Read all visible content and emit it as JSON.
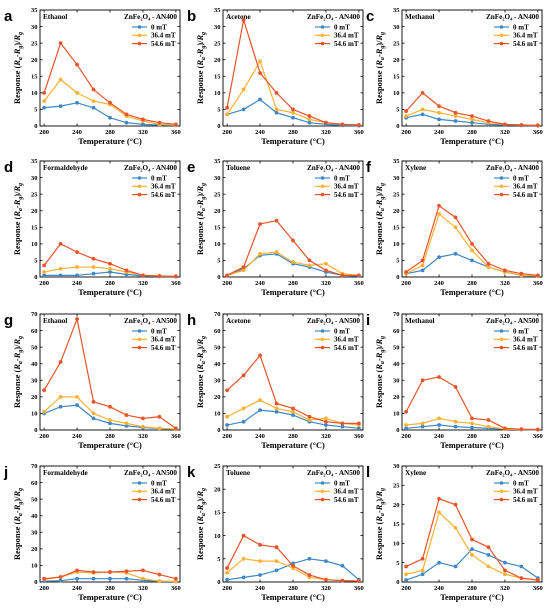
{
  "figure": {
    "xlabel": "Temperature (°C)",
    "ylabel_prefix": "Response (",
    "ylabel_r": "R",
    "ylabel_sub_a": "a",
    "ylabel_sub_g": "g",
    "ylabel_minus": "-",
    "ylabel_close": ")/",
    "legend": [
      "0 mT",
      "36.4 mT",
      "54.6 mT"
    ],
    "colors": [
      "#3f88c5",
      "#f9b234",
      "#e8542a"
    ],
    "x_ticks": [
      200,
      240,
      280,
      320,
      360
    ],
    "x_values": [
      200,
      220,
      240,
      260,
      280,
      300,
      320,
      340,
      360
    ]
  },
  "chart_data": [
    {
      "label": "a",
      "type": "line",
      "title": "Ethanol",
      "material": "ZnFe₂O₄ - AN400",
      "xlabel": "Temperature (°C)",
      "ylim": [
        0,
        35
      ],
      "yticks": [
        0,
        5,
        10,
        15,
        20,
        25,
        30,
        35
      ],
      "x": [
        200,
        220,
        240,
        260,
        280,
        300,
        320,
        340,
        360
      ],
      "series": [
        {
          "name": "0 mT",
          "values": [
            5.5,
            6,
            7,
            5.5,
            2.5,
            1,
            0.5,
            0.3,
            0.2
          ]
        },
        {
          "name": "36.4 mT",
          "values": [
            7.5,
            14,
            10,
            7.5,
            6.5,
            3,
            1.5,
            0.5,
            0.3
          ]
        },
        {
          "name": "54.6 mT",
          "values": [
            10,
            25,
            18.5,
            11,
            7,
            3.5,
            2,
            1,
            0.5
          ]
        }
      ]
    },
    {
      "label": "b",
      "type": "line",
      "title": "Acetone",
      "material": "ZnFe₂O₄ - AN400",
      "xlabel": "Temperature (°C)",
      "ylim": [
        0,
        35
      ],
      "yticks": [
        0,
        5,
        10,
        15,
        20,
        25,
        30,
        35
      ],
      "x": [
        200,
        220,
        240,
        260,
        280,
        300,
        320,
        340,
        360
      ],
      "series": [
        {
          "name": "0 mT",
          "values": [
            3.5,
            5,
            8,
            4,
            2.5,
            1,
            0.5,
            0.2,
            0.1
          ]
        },
        {
          "name": "36.4 mT",
          "values": [
            3.5,
            11,
            19.5,
            5,
            4,
            2,
            1,
            0.5,
            0.3
          ]
        },
        {
          "name": "54.6 mT",
          "values": [
            5.5,
            32,
            16,
            10,
            5,
            3,
            1,
            0.5,
            0.3
          ]
        }
      ]
    },
    {
      "label": "c",
      "type": "line",
      "title": "Methanol",
      "material": "ZnFe₂O₄ - AN400",
      "xlabel": "Temperature (°C)",
      "ylim": [
        0,
        35
      ],
      "yticks": [
        0,
        5,
        10,
        15,
        20,
        25,
        30,
        35
      ],
      "x": [
        200,
        220,
        240,
        260,
        280,
        300,
        320,
        340,
        360
      ],
      "series": [
        {
          "name": "0 mT",
          "values": [
            2.5,
            3.5,
            2,
            1.5,
            1,
            0.5,
            0.3,
            0.2,
            0.1
          ]
        },
        {
          "name": "36.4 mT",
          "values": [
            3,
            5,
            4,
            3,
            2,
            1,
            0.5,
            0.3,
            0.2
          ]
        },
        {
          "name": "54.6 mT",
          "values": [
            4.5,
            10,
            6,
            4,
            3,
            1.5,
            0.5,
            0.3,
            0.2
          ]
        }
      ]
    },
    {
      "label": "d",
      "type": "line",
      "title": "Formaldehyde",
      "material": "ZnFe₂O₄ - AN400",
      "xlabel": "Temperature (°C)",
      "ylim": [
        0,
        35
      ],
      "yticks": [
        0,
        5,
        10,
        15,
        20,
        25,
        30,
        35
      ],
      "x": [
        200,
        220,
        240,
        260,
        280,
        300,
        320,
        340,
        360
      ],
      "series": [
        {
          "name": "0 mT",
          "values": [
            0.5,
            0.5,
            0.5,
            1,
            1.5,
            0.8,
            0.3,
            0.2,
            0.1
          ]
        },
        {
          "name": "36.4 mT",
          "values": [
            1.5,
            2.5,
            3,
            3,
            2.5,
            1.5,
            0.5,
            0.3,
            0.2
          ]
        },
        {
          "name": "54.6 mT",
          "values": [
            3.5,
            10,
            7.5,
            5.5,
            4,
            2,
            0.5,
            0.3,
            0.2
          ]
        }
      ]
    },
    {
      "label": "e",
      "type": "line",
      "title": "Toluene",
      "material": "ZnFe₂O₄ - AN400",
      "xlabel": "Temperature (°C)",
      "ylim": [
        0,
        35
      ],
      "yticks": [
        0,
        5,
        10,
        15,
        20,
        25,
        30,
        35
      ],
      "x": [
        200,
        220,
        240,
        260,
        280,
        300,
        320,
        340,
        360
      ],
      "series": [
        {
          "name": "0 mT",
          "values": [
            0.5,
            2.5,
            6.5,
            7,
            4,
            3,
            1.5,
            0.5,
            0.3
          ]
        },
        {
          "name": "36.4 mT",
          "values": [
            0.5,
            2,
            7,
            7.5,
            4.5,
            3.5,
            4,
            1,
            0.5
          ]
        },
        {
          "name": "54.6 mT",
          "values": [
            0.5,
            3,
            16,
            17,
            11,
            5,
            2,
            0.5,
            0.5
          ]
        }
      ]
    },
    {
      "label": "f",
      "type": "line",
      "title": "Xylene",
      "material": "ZnFe₂O₄ - AN400",
      "xlabel": "Temperature (°C)",
      "ylim": [
        0,
        35
      ],
      "yticks": [
        0,
        5,
        10,
        15,
        20,
        25,
        30,
        35
      ],
      "x": [
        200,
        220,
        240,
        260,
        280,
        300,
        320,
        340,
        360
      ],
      "series": [
        {
          "name": "0 mT",
          "values": [
            1,
            2,
            6,
            7,
            5,
            3,
            1.5,
            0.5,
            0.3
          ]
        },
        {
          "name": "36.4 mT",
          "values": [
            1,
            3.5,
            19,
            15,
            8,
            3,
            1.5,
            0.5,
            0.3
          ]
        },
        {
          "name": "54.6 mT",
          "values": [
            1.5,
            5,
            21.5,
            18,
            10,
            4,
            2,
            1,
            0.5
          ]
        }
      ]
    },
    {
      "label": "g",
      "type": "line",
      "title": "Ethanol",
      "material": "ZnFe₂O₄ - AN500",
      "xlabel": "Temperature (°C)",
      "ylim": [
        0,
        70
      ],
      "yticks": [
        0,
        10,
        20,
        30,
        40,
        50,
        60,
        70
      ],
      "x": [
        200,
        220,
        240,
        260,
        280,
        300,
        320,
        340,
        360
      ],
      "series": [
        {
          "name": "0 mT",
          "values": [
            10,
            14,
            15,
            7,
            4,
            2.5,
            1.5,
            1,
            0.5
          ]
        },
        {
          "name": "36.4 mT",
          "values": [
            11,
            20,
            20,
            10,
            6,
            4,
            2,
            1,
            0.5
          ]
        },
        {
          "name": "54.6 mT",
          "values": [
            24,
            41,
            67,
            17,
            14,
            9,
            7,
            8,
            1
          ]
        }
      ]
    },
    {
      "label": "h",
      "type": "line",
      "title": "Acetone",
      "material": "ZnFe₂O₄ - AN500",
      "xlabel": "Temperature (°C)",
      "ylim": [
        0,
        70
      ],
      "yticks": [
        0,
        10,
        20,
        30,
        40,
        50,
        60,
        70
      ],
      "x": [
        200,
        220,
        240,
        260,
        280,
        300,
        320,
        340,
        360
      ],
      "series": [
        {
          "name": "0 mT",
          "values": [
            3,
            5,
            12,
            11,
            9,
            5,
            3,
            2,
            1
          ]
        },
        {
          "name": "36.4 mT",
          "values": [
            8,
            13,
            18,
            13,
            11,
            6,
            7,
            4,
            3
          ]
        },
        {
          "name": "54.6 mT",
          "values": [
            24,
            33,
            45,
            16,
            13,
            8,
            5,
            4,
            4
          ]
        }
      ]
    },
    {
      "label": "i",
      "type": "line",
      "title": "Methanol",
      "material": "ZnFe₂O₄ - AN500",
      "xlabel": "Temperature (°C)",
      "ylim": [
        0,
        70
      ],
      "yticks": [
        0,
        10,
        20,
        30,
        40,
        50,
        60,
        70
      ],
      "x": [
        200,
        220,
        240,
        260,
        280,
        300,
        320,
        340,
        360
      ],
      "series": [
        {
          "name": "0 mT",
          "values": [
            1,
            2,
            3,
            2,
            1.5,
            1,
            0.5,
            0.3,
            0.2
          ]
        },
        {
          "name": "36.4 mT",
          "values": [
            3,
            4,
            7,
            5,
            4,
            2,
            0.5,
            0.3,
            0.2
          ]
        },
        {
          "name": "54.6 mT",
          "values": [
            11,
            30,
            32,
            26,
            7,
            6,
            1,
            0.5,
            0.3
          ]
        }
      ]
    },
    {
      "label": "j",
      "type": "line",
      "title": "Formaldehyde",
      "material": "ZnFe₂O₄ - AN500",
      "xlabel": "Temperature (°C)",
      "ylim": [
        0,
        70
      ],
      "yticks": [
        0,
        10,
        20,
        30,
        40,
        50,
        60,
        70
      ],
      "x": [
        200,
        220,
        240,
        260,
        280,
        300,
        320,
        340,
        360
      ],
      "series": [
        {
          "name": "0 mT",
          "values": [
            0.5,
            0.8,
            2,
            2,
            2,
            2,
            1,
            0.5,
            0.3
          ]
        },
        {
          "name": "36.4 mT",
          "values": [
            1.5,
            3,
            6,
            5.5,
            6,
            5.5,
            2,
            0.5,
            0.3
          ]
        },
        {
          "name": "54.6 mT",
          "values": [
            2,
            3,
            7,
            6,
            6,
            6.5,
            7,
            4.5,
            2
          ]
        }
      ]
    },
    {
      "label": "k",
      "type": "line",
      "title": "Toluene",
      "material": "ZnFe₂O₄ - AN500",
      "xlabel": "Temperature (°C)",
      "ylim": [
        0,
        25
      ],
      "yticks": [
        0,
        5,
        10,
        15,
        20,
        25
      ],
      "x": [
        200,
        220,
        240,
        260,
        280,
        300,
        320,
        340,
        360
      ],
      "series": [
        {
          "name": "0 mT",
          "values": [
            0.5,
            1,
            1.5,
            2.5,
            4,
            5,
            4.5,
            3.5,
            0.5
          ]
        },
        {
          "name": "36.4 mT",
          "values": [
            2,
            5,
            4.5,
            4.5,
            3,
            1,
            0.5,
            0.3,
            0.2
          ]
        },
        {
          "name": "54.6 mT",
          "values": [
            3,
            10,
            8,
            7.5,
            3.5,
            1.5,
            0.5,
            0.3,
            0.2
          ]
        }
      ]
    },
    {
      "label": "l",
      "type": "line",
      "title": "Xylene",
      "material": "ZnFe₂O₄ - AN500",
      "xlabel": "Temperature (°C)",
      "ylim": [
        0,
        30
      ],
      "yticks": [
        0,
        5,
        10,
        15,
        20,
        25,
        30
      ],
      "x": [
        200,
        220,
        240,
        260,
        280,
        300,
        320,
        340,
        360
      ],
      "series": [
        {
          "name": "0 mT",
          "values": [
            0.5,
            2,
            5,
            4,
            8.5,
            7,
            5,
            4,
            1
          ]
        },
        {
          "name": "36.4 mT",
          "values": [
            2,
            3,
            18,
            14,
            7,
            4,
            2,
            1,
            0.5
          ]
        },
        {
          "name": "54.6 mT",
          "values": [
            4,
            6,
            21.5,
            20,
            11,
            9,
            3,
            1,
            0.5
          ]
        }
      ]
    }
  ]
}
